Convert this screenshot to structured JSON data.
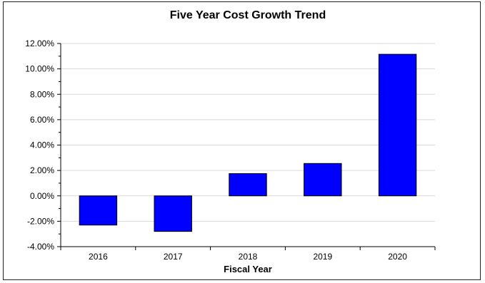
{
  "chart_data": {
    "type": "bar",
    "title": "Five Year Cost Growth Trend",
    "xlabel": "Fiscal Year",
    "ylabel": "",
    "categories": [
      "2016",
      "2017",
      "2018",
      "2019",
      "2020"
    ],
    "values": [
      -2.3,
      -2.8,
      1.75,
      2.55,
      11.15
    ],
    "ylim": [
      -4,
      12
    ],
    "yticks": [
      12,
      10,
      8,
      6,
      4,
      2,
      0,
      -2,
      -4
    ],
    "ytick_labels": [
      "12.00%",
      "10.00%",
      "8.00%",
      "6.00%",
      "4.00%",
      "2.00%",
      "0.00%",
      "-2.00%",
      "-4.00%"
    ],
    "grid": "horizontal",
    "legend": "none",
    "bar_color": "#0000ff",
    "grid_color": "#d9d9d9"
  }
}
